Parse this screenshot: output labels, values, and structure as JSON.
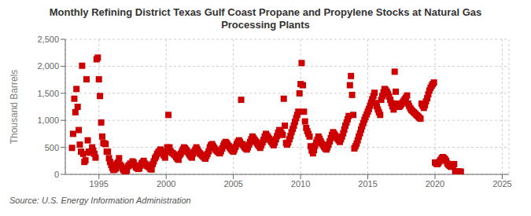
{
  "chart_data": {
    "type": "scatter",
    "title": "Monthly Refining District Texas Gulf Coast Propane and Propylene Stocks at Natural Gas\nProcessing Plants",
    "y_label": "Thousand Barrels",
    "annotations": [
      "Source: U.S. Energy Information Administration"
    ],
    "color": "#CC0000",
    "marker": "square",
    "grid": true,
    "xlim": [
      1992.5,
      2025.5
    ],
    "ylim": [
      0,
      2500
    ],
    "xticks": [
      1995,
      2000,
      2005,
      2010,
      2015,
      2020,
      2025
    ],
    "yticks": [
      0,
      500,
      {
        "value": 1000,
        "label": "1,000"
      },
      {
        "value": 1500,
        "label": "1,500"
      },
      {
        "value": 2000,
        "label": "2,000"
      },
      {
        "value": 2500,
        "label": "2,500"
      }
    ],
    "x": [
      1993.0,
      1993.08,
      1993.17,
      1993.25,
      1993.33,
      1993.42,
      1993.5,
      1993.58,
      1993.67,
      1993.75,
      1993.83,
      1993.92,
      1994.0,
      1994.08,
      1994.17,
      1994.25,
      1994.33,
      1994.42,
      1994.5,
      1994.58,
      1994.67,
      1994.75,
      1994.83,
      1994.92,
      1995.0,
      1995.08,
      1995.17,
      1995.25,
      1995.33,
      1995.42,
      1995.5,
      1995.58,
      1995.67,
      1995.75,
      1995.83,
      1995.92,
      1996.0,
      1996.08,
      1996.17,
      1996.25,
      1996.33,
      1996.42,
      1996.5,
      1996.58,
      1996.67,
      1996.75,
      1996.83,
      1996.92,
      1997.0,
      1997.08,
      1997.17,
      1997.25,
      1997.33,
      1997.42,
      1997.5,
      1997.58,
      1997.67,
      1997.75,
      1997.83,
      1997.92,
      1998.0,
      1998.08,
      1998.17,
      1998.25,
      1998.33,
      1998.42,
      1998.5,
      1998.58,
      1998.67,
      1998.75,
      1998.83,
      1998.92,
      1999.0,
      1999.08,
      1999.17,
      1999.25,
      1999.33,
      1999.42,
      1999.5,
      1999.58,
      1999.67,
      1999.75,
      1999.83,
      1999.92,
      2000.0,
      2000.08,
      2000.17,
      2000.25,
      2000.33,
      2000.42,
      2000.5,
      2000.58,
      2000.67,
      2000.75,
      2000.83,
      2000.92,
      2001.0,
      2001.08,
      2001.17,
      2001.25,
      2001.33,
      2001.42,
      2001.5,
      2001.58,
      2001.67,
      2001.75,
      2001.83,
      2001.92,
      2002.0,
      2002.08,
      2002.17,
      2002.25,
      2002.33,
      2002.42,
      2002.5,
      2002.58,
      2002.67,
      2002.75,
      2002.83,
      2002.92,
      2003.0,
      2003.08,
      2003.17,
      2003.25,
      2003.33,
      2003.42,
      2003.5,
      2003.58,
      2003.67,
      2003.75,
      2003.83,
      2003.92,
      2004.0,
      2004.08,
      2004.17,
      2004.25,
      2004.33,
      2004.42,
      2004.5,
      2004.58,
      2004.67,
      2004.75,
      2004.83,
      2004.92,
      2005.0,
      2005.08,
      2005.17,
      2005.25,
      2005.33,
      2005.42,
      2005.5,
      2005.58,
      2005.67,
      2005.75,
      2005.83,
      2005.92,
      2006.0,
      2006.08,
      2006.17,
      2006.25,
      2006.33,
      2006.42,
      2006.5,
      2006.58,
      2006.67,
      2006.75,
      2006.83,
      2006.92,
      2007.0,
      2007.08,
      2007.17,
      2007.25,
      2007.33,
      2007.42,
      2007.5,
      2007.58,
      2007.67,
      2007.75,
      2007.83,
      2007.92,
      2008.0,
      2008.08,
      2008.17,
      2008.25,
      2008.33,
      2008.42,
      2008.5,
      2008.58,
      2008.67,
      2008.75,
      2008.83,
      2008.92,
      2009.0,
      2009.08,
      2009.17,
      2009.25,
      2009.33,
      2009.42,
      2009.5,
      2009.58,
      2009.67,
      2009.75,
      2009.83,
      2009.92,
      2010.0,
      2010.08,
      2010.17,
      2010.25,
      2010.33,
      2010.42,
      2010.5,
      2010.58,
      2010.67,
      2010.75,
      2010.83,
      2010.92,
      2011.0,
      2011.08,
      2011.17,
      2011.25,
      2011.33,
      2011.42,
      2011.5,
      2011.58,
      2011.67,
      2011.75,
      2011.83,
      2011.92,
      2012.0,
      2012.08,
      2012.17,
      2012.25,
      2012.33,
      2012.42,
      2012.5,
      2012.58,
      2012.67,
      2012.75,
      2012.83,
      2012.92,
      2013.0,
      2013.08,
      2013.17,
      2013.25,
      2013.33,
      2013.42,
      2013.5,
      2013.58,
      2013.67,
      2013.75,
      2013.83,
      2013.92,
      2014.0,
      2014.08,
      2014.17,
      2014.25,
      2014.33,
      2014.42,
      2014.5,
      2014.58,
      2014.67,
      2014.75,
      2014.83,
      2014.92,
      2015.0,
      2015.08,
      2015.17,
      2015.25,
      2015.33,
      2015.42,
      2015.5,
      2015.58,
      2015.67,
      2015.75,
      2015.83,
      2015.92,
      2016.0,
      2016.08,
      2016.17,
      2016.25,
      2016.33,
      2016.42,
      2016.5,
      2016.58,
      2016.67,
      2016.75,
      2016.83,
      2016.92,
      2017.0,
      2017.08,
      2017.17,
      2017.25,
      2017.33,
      2017.42,
      2017.5,
      2017.58,
      2017.67,
      2017.75,
      2017.83,
      2017.92,
      2018.0,
      2018.08,
      2018.17,
      2018.25,
      2018.33,
      2018.42,
      2018.5,
      2018.58,
      2018.67,
      2018.75,
      2018.83,
      2018.92,
      2019.0,
      2019.08,
      2019.17,
      2019.25,
      2019.33,
      2019.42,
      2019.5,
      2019.58,
      2019.67,
      2019.75,
      2019.83,
      2019.92,
      2020.0,
      2020.08,
      2020.17,
      2020.25,
      2020.33,
      2020.42,
      2020.5,
      2020.58,
      2020.67,
      2020.75,
      2020.83,
      2020.92,
      2021.0,
      2021.08,
      2021.17,
      2021.25,
      2021.33,
      2021.42,
      2021.5,
      2021.58,
      2021.67,
      2021.75,
      2021.83,
      2021.92
    ],
    "values": [
      490,
      750,
      1400,
      1150,
      1580,
      1250,
      820,
      550,
      420,
      2010,
      380,
      230,
      260,
      1760,
      630,
      420,
      400,
      420,
      500,
      440,
      380,
      310,
      2130,
      2160,
      1760,
      1450,
      960,
      700,
      580,
      570,
      560,
      420,
      420,
      300,
      230,
      170,
      120,
      80,
      90,
      110,
      200,
      220,
      300,
      180,
      150,
      110,
      80,
      60,
      50,
      70,
      150,
      170,
      200,
      180,
      240,
      220,
      170,
      130,
      120,
      100,
      110,
      160,
      200,
      220,
      250,
      200,
      180,
      160,
      140,
      130,
      100,
      90,
      190,
      240,
      300,
      330,
      380,
      410,
      430,
      460,
      420,
      390,
      350,
      310,
      420,
      500,
      1100,
      500,
      430,
      400,
      390,
      370,
      350,
      320,
      290,
      270,
      350,
      380,
      420,
      460,
      500,
      480,
      450,
      420,
      390,
      360,
      330,
      310,
      380,
      420,
      460,
      500,
      460,
      420,
      390,
      370,
      350,
      330,
      310,
      290,
      340,
      380,
      430,
      500,
      540,
      560,
      520,
      490,
      460,
      440,
      420,
      400,
      390,
      430,
      480,
      530,
      570,
      600,
      580,
      550,
      520,
      490,
      460,
      440,
      420,
      460,
      510,
      560,
      600,
      630,
      600,
      1380,
      560,
      530,
      500,
      480,
      460,
      500,
      550,
      600,
      650,
      700,
      670,
      640,
      610,
      580,
      550,
      520,
      490,
      540,
      590,
      640,
      700,
      750,
      720,
      690,
      660,
      630,
      600,
      570,
      540,
      590,
      650,
      710,
      770,
      820,
      790,
      760,
      730,
      1400,
      900,
      580,
      550,
      590,
      650,
      710,
      780,
      840,
      900,
      970,
      1040,
      1100,
      1160,
      1500,
      1670,
      2060,
      1650,
      1160,
      980,
      860,
      800,
      750,
      700,
      520,
      440,
      390,
      450,
      530,
      590,
      640,
      700,
      660,
      610,
      570,
      540,
      510,
      480,
      460,
      500,
      550,
      610,
      670,
      730,
      780,
      750,
      720,
      690,
      660,
      630,
      600,
      650,
      700,
      760,
      830,
      900,
      960,
      1020,
      1080,
      1650,
      1820,
      1470,
      1100,
      480,
      520,
      570,
      630,
      700,
      760,
      830,
      890,
      950,
      1010,
      1060,
      1110,
      1160,
      1210,
      1270,
      1330,
      1390,
      1450,
      1510,
      1320,
      1260,
      1200,
      1150,
      1100,
      1380,
      1450,
      1520,
      1580,
      1560,
      1530,
      1490,
      1440,
      1380,
      1320,
      1260,
      1200,
      1900,
      1530,
      1310,
      1280,
      1250,
      1270,
      1300,
      1330,
      1360,
      1390,
      1420,
      1460,
      1310,
      1260,
      1220,
      1190,
      1170,
      1150,
      1130,
      1110,
      1090,
      1070,
      1050,
      1030,
      1310,
      1270,
      1230,
      1280,
      1350,
      1410,
      1480,
      1550,
      1600,
      1640,
      1670,
      1700,
      220,
      200,
      190,
      210,
      240,
      270,
      300,
      320,
      300,
      280,
      250,
      200,
      180,
      160,
      140,
      150,
      170,
      190,
      60,
      50,
      50,
      50,
      50,
      50
    ]
  }
}
